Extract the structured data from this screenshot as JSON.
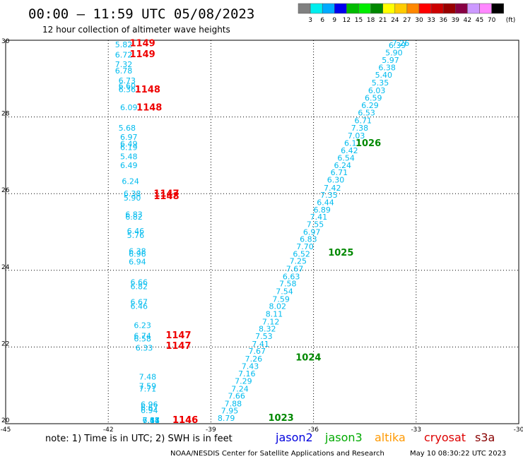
{
  "chart_data": {
    "type": "scatter",
    "title": "00:00 – 11:59 UTC 05/08/2023",
    "subtitle": "12 hour collection of altimeter wave heights",
    "xlabel": "",
    "ylabel": "",
    "xlim": [
      -45,
      -30
    ],
    "ylim": [
      20,
      30
    ],
    "x_ticks": [
      "-45",
      "-42",
      "-39",
      "-36",
      "-33",
      "-30"
    ],
    "y_ticks": [
      "20",
      "22",
      "24",
      "26",
      "28",
      "30"
    ],
    "grid": true,
    "color_scale": {
      "unit": "(ft)",
      "ticks": [
        "3",
        "6",
        "9",
        "12",
        "15",
        "18",
        "21",
        "24",
        "27",
        "30",
        "33",
        "36",
        "39",
        "42",
        "45",
        "70"
      ],
      "colors": [
        "#808080",
        "#00eeee",
        "#00aaff",
        "#0000ee",
        "#00bb00",
        "#00ee00",
        "#008800",
        "#ffff00",
        "#ffcc00",
        "#ff8800",
        "#ff0000",
        "#cc0000",
        "#990000",
        "#880044",
        "#cc99ff",
        "#ff88ff",
        "#000000"
      ]
    },
    "series": [
      {
        "name": "",
        "color": "#00bbee",
        "points": [
          {
            "x": -41.55,
            "y": 29.82,
            "v": "5.82"
          },
          {
            "x": -41.55,
            "y": 29.55,
            "v": "6.72"
          },
          {
            "x": -41.55,
            "y": 29.3,
            "v": "7.32"
          },
          {
            "x": -41.55,
            "y": 29.13,
            "v": "6.78"
          },
          {
            "x": -41.45,
            "y": 28.88,
            "v": "6.73"
          },
          {
            "x": -41.45,
            "y": 28.74,
            "v": "6.60"
          },
          {
            "x": -41.45,
            "y": 28.65,
            "v": "6.36"
          },
          {
            "x": -41.4,
            "y": 28.18,
            "v": "6.09"
          },
          {
            "x": -41.45,
            "y": 27.64,
            "v": "5.68"
          },
          {
            "x": -41.4,
            "y": 27.4,
            "v": "6.97"
          },
          {
            "x": -41.4,
            "y": 27.23,
            "v": "6.49"
          },
          {
            "x": -41.4,
            "y": 27.14,
            "v": "6.19"
          },
          {
            "x": -41.4,
            "y": 26.9,
            "v": "5.48"
          },
          {
            "x": -41.4,
            "y": 26.67,
            "v": "6.49"
          },
          {
            "x": -41.35,
            "y": 26.25,
            "v": "6.24"
          },
          {
            "x": -41.3,
            "y": 25.93,
            "v": "6.38"
          },
          {
            "x": -41.3,
            "y": 25.82,
            "v": "5.90"
          },
          {
            "x": -41.25,
            "y": 25.39,
            "v": "6.83"
          },
          {
            "x": -41.25,
            "y": 25.32,
            "v": "6.82"
          },
          {
            "x": -41.2,
            "y": 24.95,
            "v": "6.46"
          },
          {
            "x": -41.2,
            "y": 24.84,
            "v": "5.76"
          },
          {
            "x": -41.15,
            "y": 24.43,
            "v": "6.38"
          },
          {
            "x": -41.15,
            "y": 24.36,
            "v": "6.96"
          },
          {
            "x": -41.15,
            "y": 24.15,
            "v": "6.94"
          },
          {
            "x": -41.1,
            "y": 23.62,
            "v": "6.66"
          },
          {
            "x": -41.1,
            "y": 23.51,
            "v": "6.82"
          },
          {
            "x": -41.1,
            "y": 23.1,
            "v": "6.67"
          },
          {
            "x": -41.1,
            "y": 22.99,
            "v": "6.46"
          },
          {
            "x": -41.0,
            "y": 22.5,
            "v": "6.23"
          },
          {
            "x": -41.0,
            "y": 22.22,
            "v": "6.74"
          },
          {
            "x": -41.0,
            "y": 22.15,
            "v": "6.58"
          },
          {
            "x": -40.95,
            "y": 21.91,
            "v": "6.33"
          },
          {
            "x": -40.85,
            "y": 21.15,
            "v": "7.48"
          },
          {
            "x": -40.85,
            "y": 20.91,
            "v": "7.59"
          },
          {
            "x": -40.85,
            "y": 20.84,
            "v": "7.71"
          },
          {
            "x": -40.8,
            "y": 20.43,
            "v": "6.96"
          },
          {
            "x": -40.8,
            "y": 20.35,
            "v": "6.67"
          },
          {
            "x": -40.8,
            "y": 20.28,
            "v": "6.94"
          },
          {
            "x": -40.75,
            "y": 19.7,
            "v": "6.41"
          },
          {
            "x": -40.75,
            "y": 19.62,
            "v": "7.14"
          },
          {
            "x": -40.75,
            "y": 19.53,
            "v": "7.88"
          },
          {
            "x": -40.75,
            "y": 19.15,
            "v": "7.67"
          },
          {
            "x": -33.45,
            "y": 29.99,
            "v": "7.26"
          },
          {
            "x": -33.55,
            "y": 29.8,
            "v": "6.39"
          },
          {
            "x": -33.65,
            "y": 29.6,
            "v": "5.90"
          },
          {
            "x": -33.75,
            "y": 29.41,
            "v": "5.97"
          },
          {
            "x": -33.85,
            "y": 29.22,
            "v": "6.38"
          },
          {
            "x": -33.95,
            "y": 29.02,
            "v": "5.40"
          },
          {
            "x": -34.05,
            "y": 28.82,
            "v": "5.35"
          },
          {
            "x": -34.15,
            "y": 28.62,
            "v": "6.03"
          },
          {
            "x": -34.25,
            "y": 28.43,
            "v": "6.59"
          },
          {
            "x": -34.35,
            "y": 28.23,
            "v": "6.29"
          },
          {
            "x": -34.45,
            "y": 28.04,
            "v": "6.53"
          },
          {
            "x": -34.55,
            "y": 27.84,
            "v": "6.71"
          },
          {
            "x": -34.65,
            "y": 27.64,
            "v": "7.38"
          },
          {
            "x": -34.75,
            "y": 27.44,
            "v": "7.03"
          },
          {
            "x": -34.85,
            "y": 27.25,
            "v": "6.11"
          },
          {
            "x": -34.95,
            "y": 27.05,
            "v": "6.42"
          },
          {
            "x": -35.05,
            "y": 26.86,
            "v": "6.54"
          },
          {
            "x": -35.15,
            "y": 26.67,
            "v": "6.24"
          },
          {
            "x": -35.25,
            "y": 26.48,
            "v": "6.71"
          },
          {
            "x": -35.35,
            "y": 26.29,
            "v": "6.30"
          },
          {
            "x": -35.45,
            "y": 26.08,
            "v": "7.42"
          },
          {
            "x": -35.55,
            "y": 25.89,
            "v": "7.35"
          },
          {
            "x": -35.65,
            "y": 25.7,
            "v": "6.44"
          },
          {
            "x": -35.75,
            "y": 25.51,
            "v": "6.89"
          },
          {
            "x": -35.85,
            "y": 25.32,
            "v": "7.41"
          },
          {
            "x": -35.95,
            "y": 25.13,
            "v": "7.55"
          },
          {
            "x": -36.05,
            "y": 24.93,
            "v": "6.97"
          },
          {
            "x": -36.15,
            "y": 24.74,
            "v": "6.83"
          },
          {
            "x": -36.25,
            "y": 24.55,
            "v": "7.70"
          },
          {
            "x": -36.35,
            "y": 24.36,
            "v": "6.52"
          },
          {
            "x": -36.45,
            "y": 24.17,
            "v": "7.25"
          },
          {
            "x": -36.55,
            "y": 23.97,
            "v": "7.67"
          },
          {
            "x": -36.65,
            "y": 23.77,
            "v": "6.63"
          },
          {
            "x": -36.75,
            "y": 23.58,
            "v": "7.58"
          },
          {
            "x": -36.85,
            "y": 23.38,
            "v": "7.54"
          },
          {
            "x": -36.95,
            "y": 23.18,
            "v": "7.59"
          },
          {
            "x": -37.05,
            "y": 22.99,
            "v": "8.02"
          },
          {
            "x": -37.15,
            "y": 22.79,
            "v": "8.11"
          },
          {
            "x": -37.25,
            "y": 22.59,
            "v": "7.12"
          },
          {
            "x": -37.35,
            "y": 22.4,
            "v": "8.32"
          },
          {
            "x": -37.45,
            "y": 22.21,
            "v": "7.53"
          },
          {
            "x": -37.55,
            "y": 22.01,
            "v": "7.41"
          },
          {
            "x": -37.65,
            "y": 21.82,
            "v": "7.67"
          },
          {
            "x": -37.75,
            "y": 21.62,
            "v": "7.26"
          },
          {
            "x": -37.85,
            "y": 21.43,
            "v": "7.43"
          },
          {
            "x": -37.95,
            "y": 21.23,
            "v": "7.16"
          },
          {
            "x": -38.05,
            "y": 21.04,
            "v": "7.29"
          },
          {
            "x": -38.15,
            "y": 20.84,
            "v": "7.24"
          },
          {
            "x": -38.25,
            "y": 20.65,
            "v": "7.66"
          },
          {
            "x": -38.35,
            "y": 20.45,
            "v": "7.88"
          },
          {
            "x": -38.45,
            "y": 20.27,
            "v": "7.95"
          },
          {
            "x": -38.55,
            "y": 20.07,
            "v": "8.79"
          }
        ]
      }
    ],
    "annotations": [
      {
        "x": -41.0,
        "y": 29.84,
        "text": "1149",
        "color": "#ee0000"
      },
      {
        "x": -41.0,
        "y": 29.56,
        "text": "1149",
        "color": "#ee0000"
      },
      {
        "x": -40.85,
        "y": 28.64,
        "text": "1148",
        "color": "#ee0000"
      },
      {
        "x": -40.8,
        "y": 28.17,
        "text": "1148",
        "color": "#ee0000"
      },
      {
        "x": -40.3,
        "y": 25.92,
        "text": "1147",
        "color": "#ee0000"
      },
      {
        "x": -40.3,
        "y": 25.86,
        "text": "1148",
        "color": "#ee0000"
      },
      {
        "x": -39.95,
        "y": 22.23,
        "text": "1147",
        "color": "#ee0000"
      },
      {
        "x": -39.95,
        "y": 21.95,
        "text": "1147",
        "color": "#ee0000"
      },
      {
        "x": -39.75,
        "y": 19.55,
        "text": "1146",
        "color": "#ee0000"
      },
      {
        "x": -39.75,
        "y": 19.17,
        "text": "1146",
        "color": "#ee0000"
      },
      {
        "x": -34.4,
        "y": 27.24,
        "text": "1026",
        "color": "#008800"
      },
      {
        "x": -35.2,
        "y": 24.38,
        "text": "1025",
        "color": "#008800"
      },
      {
        "x": -36.15,
        "y": 21.65,
        "text": "1024",
        "color": "#008800"
      },
      {
        "x": -36.95,
        "y": 20.07,
        "text": "1023",
        "color": "#008800"
      }
    ]
  },
  "footer": {
    "note": "note:  1) Time is in UTC; 2) SWH is in feet",
    "satellites": [
      {
        "name": "jason2",
        "color": "#0000dd"
      },
      {
        "name": "jason3",
        "color": "#00aa00"
      },
      {
        "name": "altika",
        "color": "#ff9900"
      },
      {
        "name": "cryosat",
        "color": "#dd0000"
      },
      {
        "name": "s3a",
        "color": "#880000"
      }
    ],
    "credit": "NOAA/NESDIS Center for Satellite Applications and Research",
    "timestamp": "May 10 08:30:22 UTC 2023"
  }
}
